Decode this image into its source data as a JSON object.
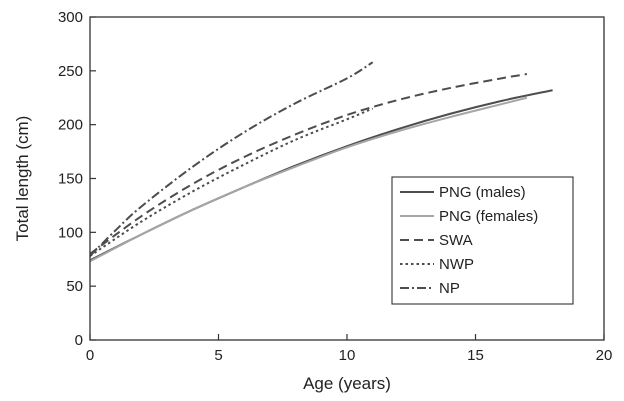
{
  "chart_data": {
    "type": "line",
    "title": "",
    "xlabel": "Age (years)",
    "ylabel": "Total length (cm)",
    "xlim": [
      0,
      20
    ],
    "ylim": [
      0,
      300
    ],
    "xticks": [
      "0",
      "5",
      "10",
      "15",
      "20"
    ],
    "yticks": [
      "0",
      "50",
      "100",
      "150",
      "200",
      "250",
      "300"
    ],
    "grid": false,
    "legend_position": "center-right",
    "series": [
      {
        "name": "PNG (males)",
        "style": "solid",
        "color": "#4d4d4d",
        "x": [
          0,
          2,
          4,
          6,
          8,
          10,
          12,
          14,
          16,
          18
        ],
        "y": [
          74,
          98,
          121,
          142,
          162,
          180,
          196,
          210,
          222,
          232
        ]
      },
      {
        "name": "PNG (females)",
        "style": "solid",
        "color": "#a6a6a6",
        "x": [
          0,
          2,
          4,
          6,
          8,
          10,
          12,
          14,
          16,
          17
        ],
        "y": [
          73,
          98,
          121,
          142,
          161,
          179,
          194,
          207,
          219,
          225
        ]
      },
      {
        "name": "SWA",
        "style": "dashed",
        "color": "#4d4d4d",
        "x": [
          0,
          2,
          4,
          6,
          8,
          10,
          12,
          14,
          16,
          17
        ],
        "y": [
          80,
          115,
          145,
          170,
          191,
          209,
          223,
          234,
          243,
          247
        ]
      },
      {
        "name": "NWP",
        "style": "dotted",
        "color": "#4d4d4d",
        "x": [
          0,
          2,
          4,
          6,
          8,
          10,
          11
        ],
        "y": [
          78,
          110,
          138,
          163,
          186,
          205,
          215
        ]
      },
      {
        "name": "NP",
        "style": "dashdot",
        "color": "#4d4d4d",
        "x": [
          0,
          1,
          2,
          4,
          6,
          8,
          10,
          11
        ],
        "y": [
          78,
          102,
          124,
          161,
          193,
          220,
          243,
          258
        ]
      }
    ]
  }
}
